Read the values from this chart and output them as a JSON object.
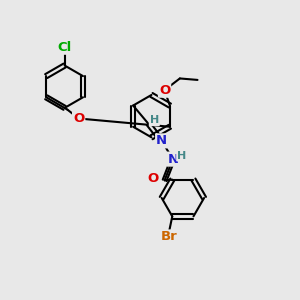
{
  "bg_color": "#e8e8e8",
  "bond_color": "#000000",
  "bond_width": 1.5,
  "atom_colors": {
    "Cl": "#00aa00",
    "O": "#dd0000",
    "N": "#2222cc",
    "H": "#448888",
    "Br": "#cc6600",
    "C": "#000000"
  },
  "font_size": 9.5,
  "font_size_small": 8.0
}
